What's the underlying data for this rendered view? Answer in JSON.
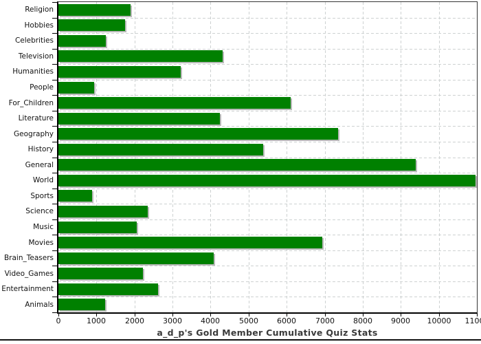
{
  "chart_data": {
    "type": "bar",
    "orientation": "horizontal",
    "title": "a_d_p's Gold Member Cumulative Quiz Stats",
    "categories": [
      "Religion",
      "Hobbies",
      "Celebrities",
      "Television",
      "Humanities",
      "People",
      "For_Children",
      "Literature",
      "Geography",
      "History",
      "General",
      "World",
      "Sports",
      "Science",
      "Music",
      "Movies",
      "Brain_Teasers",
      "Video_Games",
      "Entertainment",
      "Animals"
    ],
    "values": [
      1900,
      1750,
      1250,
      4320,
      3210,
      940,
      6110,
      4240,
      7350,
      5390,
      9400,
      10970,
      890,
      2350,
      2060,
      6930,
      4090,
      2230,
      2620,
      1220
    ],
    "xlim": [
      0,
      11000
    ],
    "x_tick_step": 1000,
    "x_tick_labels": [
      "0",
      "1000",
      "2000",
      "3000",
      "4000",
      "5000",
      "6000",
      "7000",
      "8000",
      "9000",
      "10000",
      "11000"
    ],
    "xlabel": "",
    "ylabel": "",
    "legend": "none",
    "grid": "dashed",
    "bar_color": "#008000",
    "shadow_color": "#b9b9b9",
    "gridline_color": "#cdd1d1",
    "axis_color": "#000000",
    "title_color": "#3a3a3a"
  }
}
